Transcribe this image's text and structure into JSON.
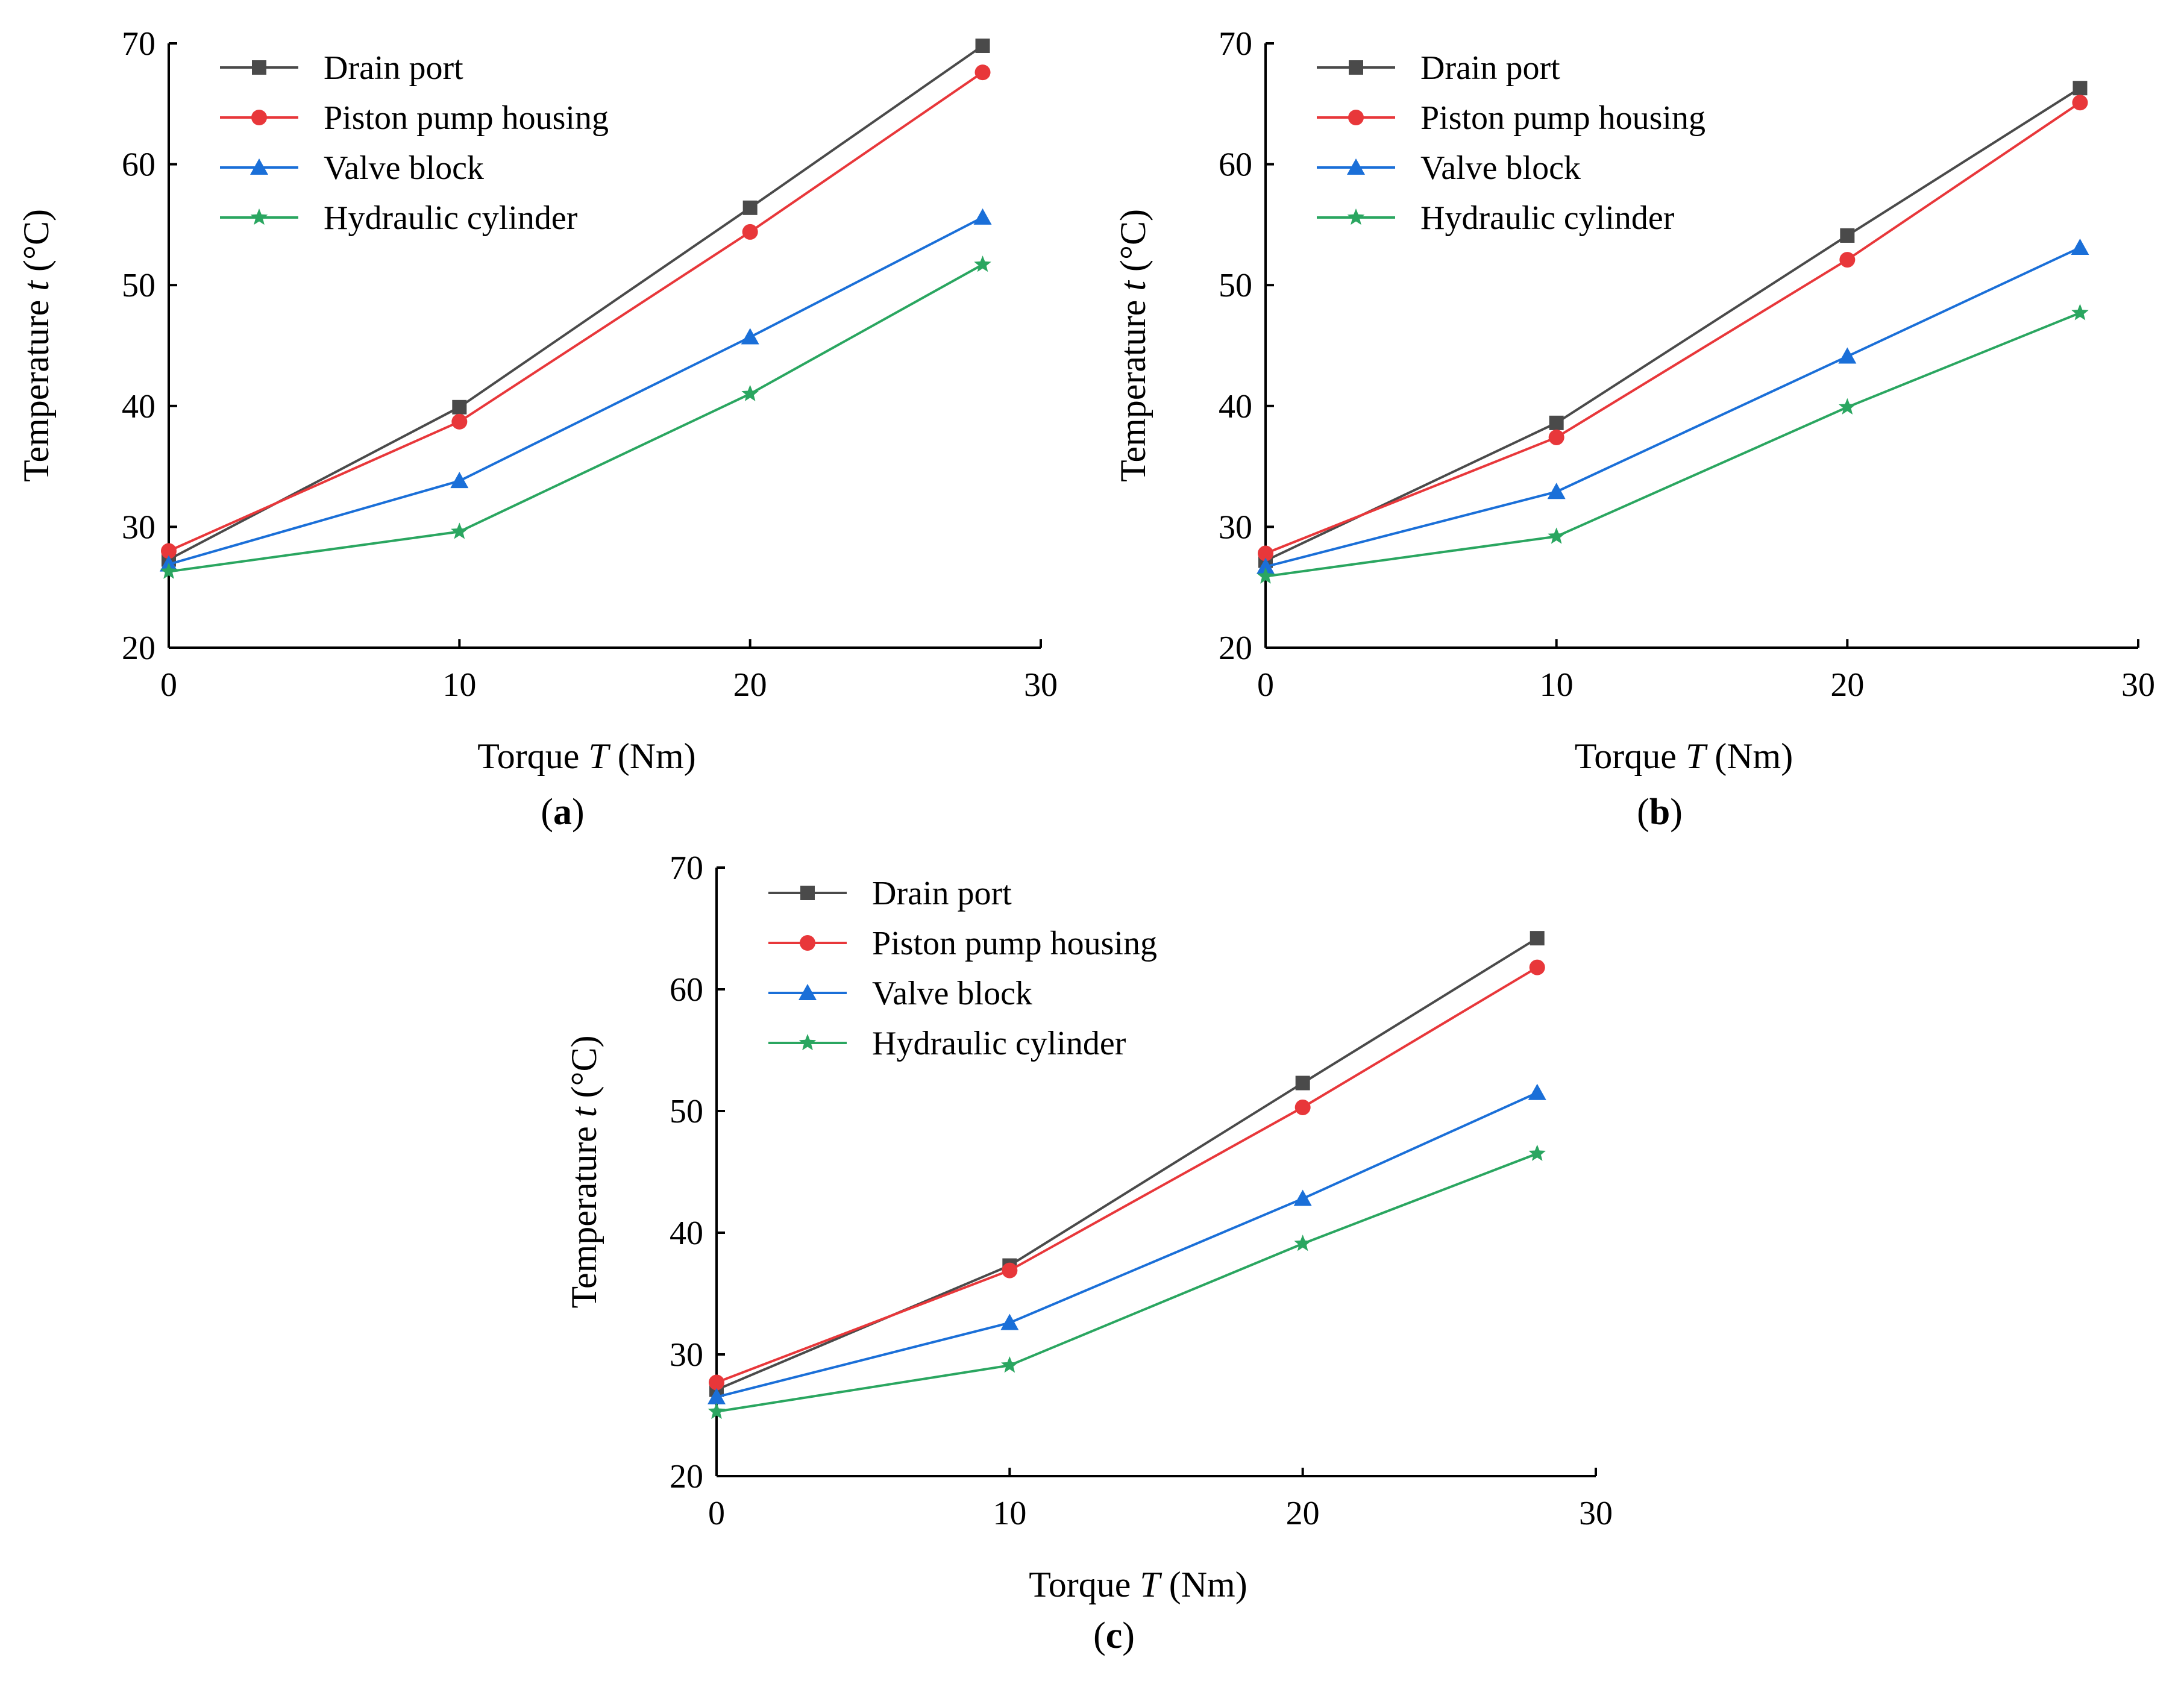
{
  "figure": {
    "series_styles": [
      {
        "key": "drain",
        "color": "#4a4a4a",
        "marker": "square"
      },
      {
        "key": "piston",
        "color": "#e8373a",
        "marker": "circle"
      },
      {
        "key": "valve",
        "color": "#1a6fd8",
        "marker": "triangle"
      },
      {
        "key": "cylinder",
        "color": "#2aa660",
        "marker": "star"
      }
    ]
  },
  "chart_data": [
    {
      "type": "line",
      "panel": "a",
      "panel_label": {
        "open": "(",
        "letter": "a",
        "close": ")"
      },
      "title": "",
      "xlabel": {
        "pre": "Torque ",
        "var": "T",
        "post": " (Nm)"
      },
      "ylabel": {
        "pre": "Temperature ",
        "var": "t",
        "post": " (°C)"
      },
      "xlim": [
        0,
        30
      ],
      "ylim": [
        20,
        70
      ],
      "xticks": [
        0,
        10,
        20,
        30
      ],
      "yticks": [
        20,
        30,
        40,
        50,
        60,
        70
      ],
      "grid": false,
      "legend_position": "top-left",
      "x": [
        0,
        10,
        20,
        28
      ],
      "series": [
        {
          "name": "Drain port",
          "values": [
            27.3,
            39.9,
            56.4,
            69.8
          ]
        },
        {
          "name": "Piston pump housing",
          "values": [
            28.0,
            38.7,
            54.4,
            67.6
          ]
        },
        {
          "name": "Valve block",
          "values": [
            26.9,
            33.8,
            45.7,
            55.6
          ]
        },
        {
          "name": "Hydraulic cylinder",
          "values": [
            26.3,
            29.6,
            41.0,
            51.7
          ]
        }
      ]
    },
    {
      "type": "line",
      "panel": "b",
      "panel_label": {
        "open": "(",
        "letter": "b",
        "close": ")"
      },
      "title": "",
      "xlabel": {
        "pre": "Torque ",
        "var": "T",
        "post": " (Nm)"
      },
      "ylabel": {
        "pre": "Temperature ",
        "var": "t",
        "post": " (°C)"
      },
      "xlim": [
        0,
        30
      ],
      "ylim": [
        20,
        70
      ],
      "xticks": [
        0,
        10,
        20,
        30
      ],
      "yticks": [
        20,
        30,
        40,
        50,
        60,
        70
      ],
      "grid": false,
      "legend_position": "top-left",
      "x": [
        0,
        10,
        20,
        28
      ],
      "series": [
        {
          "name": "Drain port",
          "values": [
            27.2,
            38.6,
            54.1,
            66.3
          ]
        },
        {
          "name": "Piston pump housing",
          "values": [
            27.8,
            37.4,
            52.1,
            65.1
          ]
        },
        {
          "name": "Valve block",
          "values": [
            26.7,
            32.9,
            44.1,
            53.1
          ]
        },
        {
          "name": "Hydraulic cylinder",
          "values": [
            25.9,
            29.2,
            39.9,
            47.7
          ]
        }
      ]
    },
    {
      "type": "line",
      "panel": "c",
      "panel_label": {
        "open": "(",
        "letter": "c",
        "close": ")"
      },
      "title": "",
      "xlabel": {
        "pre": "Torque ",
        "var": "T",
        "post": " (Nm)"
      },
      "ylabel": {
        "pre": "Temperature ",
        "var": "t",
        "post": " (°C)"
      },
      "xlim": [
        0,
        30
      ],
      "ylim": [
        20,
        70
      ],
      "xticks": [
        0,
        10,
        20,
        30
      ],
      "yticks": [
        20,
        30,
        40,
        50,
        60,
        70
      ],
      "grid": false,
      "legend_position": "top-left",
      "x": [
        0,
        10,
        20,
        28
      ],
      "series": [
        {
          "name": "Drain port",
          "values": [
            27.1,
            37.3,
            52.3,
            64.2
          ]
        },
        {
          "name": "Piston pump housing",
          "values": [
            27.7,
            36.9,
            50.3,
            61.8
          ]
        },
        {
          "name": "Valve block",
          "values": [
            26.5,
            32.6,
            42.8,
            51.5
          ]
        },
        {
          "name": "Hydraulic cylinder",
          "values": [
            25.3,
            29.1,
            39.1,
            46.5
          ]
        }
      ]
    }
  ]
}
